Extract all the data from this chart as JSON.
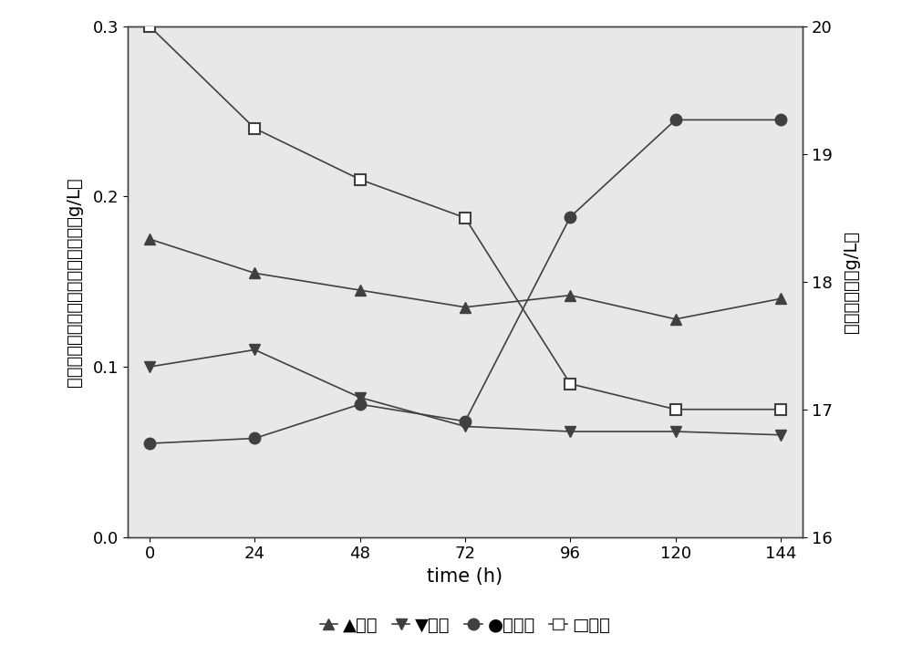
{
  "time": [
    0,
    24,
    48,
    72,
    96,
    120,
    144
  ],
  "glycerol": [
    0.175,
    0.155,
    0.145,
    0.135,
    0.142,
    0.128,
    0.14
  ],
  "acetic_acid": [
    0.1,
    0.11,
    0.082,
    0.065,
    0.062,
    0.062,
    0.06
  ],
  "xylitol": [
    0.055,
    0.058,
    0.078,
    0.068,
    0.188,
    0.245,
    0.245
  ],
  "xylose": [
    0.298,
    0.228,
    0.196,
    0.178,
    0.115,
    0.072,
    0.072
  ],
  "xylose_right": [
    20.0,
    19.2,
    18.8,
    18.5,
    17.2,
    17.0,
    17.0
  ],
  "ylim_left": [
    0.0,
    0.3
  ],
  "ylim_right": [
    16.0,
    20.0
  ],
  "xlim": [
    0,
    144
  ],
  "ylabel_left": "乙酸、甘油、木糖醇和乙醇的浓度（g/L）",
  "ylabel_right": "木糖的浓度（g/L）",
  "xlabel": "time (h)",
  "yticks_left": [
    0.0,
    0.1,
    0.2,
    0.3
  ],
  "yticks_right": [
    16,
    17,
    18,
    19,
    20
  ],
  "xticks": [
    0,
    24,
    48,
    72,
    96,
    120,
    144
  ],
  "legend_text": "▲甘油；▼乙酸；●木糖醇；口木糖",
  "line_color": "#404040",
  "bg_color": "#e8e8e8",
  "marker_glycerol": "^",
  "marker_acetic": "v",
  "marker_xylitol": "o",
  "marker_xylose": "s",
  "markersize": 9,
  "linewidth": 1.2
}
